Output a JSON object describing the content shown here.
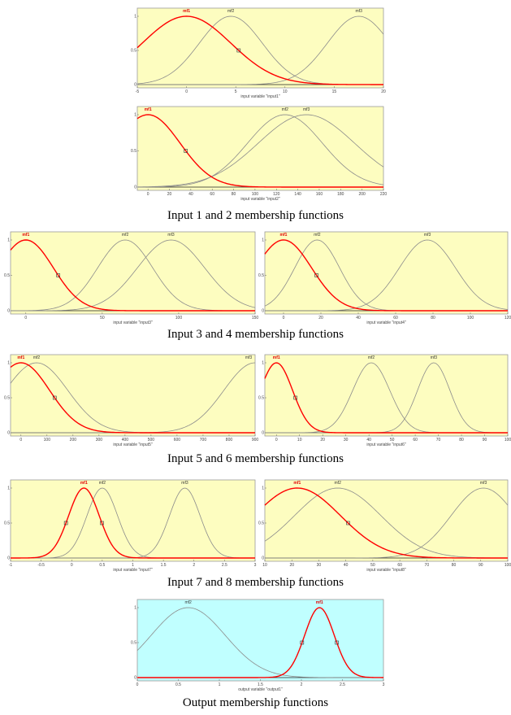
{
  "colors": {
    "yellow_bg": "#fdfdc0",
    "cyan_bg": "#c0ffff",
    "selected": "#ff0000",
    "curve": "#8c8c8c",
    "frame": "#9a9a9a"
  },
  "captions": [
    "Input 1  and 2 membership functions",
    "Input 3 and 4 membership functions",
    "Input 5 and 6 membership functions",
    "Input 7  and 8 membership functions",
    "Output  membership functions"
  ],
  "chart_data": [
    {
      "id": "input1",
      "type": "line",
      "bg": "yellow",
      "xlabel": "input variable \"input1\"",
      "xlim": [
        -5,
        20
      ],
      "ylim": [
        0,
        1
      ],
      "xticks": [
        "-5",
        "0",
        "5",
        "10",
        "15",
        "20"
      ],
      "yticks": [
        "0",
        "0.5",
        "1"
      ],
      "mfs": [
        {
          "name": "mf1",
          "c": 0,
          "s": 4.5,
          "selected": true
        },
        {
          "name": "mf2",
          "c": 4.5,
          "s": 3.2
        },
        {
          "name": "mf3",
          "c": 17.5,
          "s": 3.2
        }
      ]
    },
    {
      "id": "input2",
      "type": "line",
      "bg": "yellow",
      "xlabel": "input variable \"input2\"",
      "xlim": [
        -10,
        220
      ],
      "ylim": [
        0,
        1
      ],
      "xticks": [
        "0",
        "20",
        "40",
        "60",
        "80",
        "100",
        "120",
        "140",
        "160",
        "180",
        "200",
        "220"
      ],
      "yticks": [
        "0",
        "0.5",
        "1"
      ],
      "mfs": [
        {
          "name": "mf1",
          "c": 0,
          "s": 30,
          "selected": true
        },
        {
          "name": "mf2",
          "c": 128,
          "s": 35
        },
        {
          "name": "mf3",
          "c": 148,
          "s": 45
        }
      ]
    },
    {
      "id": "input3",
      "type": "line",
      "bg": "yellow",
      "xlabel": "input variable \"input3\"",
      "xlim": [
        -10,
        150
      ],
      "ylim": [
        0,
        1
      ],
      "xticks": [
        "0",
        "50",
        "100",
        "150"
      ],
      "yticks": [
        "0",
        "0.5",
        "1"
      ],
      "mfs": [
        {
          "name": "mf1",
          "c": 0,
          "s": 18,
          "selected": true
        },
        {
          "name": "mf2",
          "c": 65,
          "s": 18
        },
        {
          "name": "mf3",
          "c": 95,
          "s": 22
        }
      ]
    },
    {
      "id": "input4",
      "type": "line",
      "bg": "yellow",
      "xlabel": "input variable \"input4\"",
      "xlim": [
        -10,
        120
      ],
      "ylim": [
        0,
        1
      ],
      "xticks": [
        "0",
        "20",
        "40",
        "60",
        "80",
        "100",
        "120"
      ],
      "yticks": [
        "0",
        "0.5",
        "1"
      ],
      "mfs": [
        {
          "name": "mf1",
          "c": 0,
          "s": 15,
          "selected": true
        },
        {
          "name": "mf2",
          "c": 18,
          "s": 12
        },
        {
          "name": "mf3",
          "c": 77,
          "s": 15
        }
      ]
    },
    {
      "id": "input5",
      "type": "line",
      "bg": "yellow",
      "xlabel": "input variable \"input5\"",
      "xlim": [
        -40,
        900
      ],
      "ylim": [
        0,
        1
      ],
      "xticks": [
        "0",
        "100",
        "200",
        "300",
        "400",
        "500",
        "600",
        "700",
        "800",
        "900"
      ],
      "yticks": [
        "0",
        "0.5",
        "1"
      ],
      "mfs": [
        {
          "name": "mf1",
          "c": 0,
          "s": 110,
          "selected": true
        },
        {
          "name": "mf2",
          "c": 60,
          "s": 120
        },
        {
          "name": "mf3",
          "c": 900,
          "s": 120
        }
      ]
    },
    {
      "id": "input6",
      "type": "line",
      "bg": "yellow",
      "xlabel": "input variable \"input6\"",
      "xlim": [
        -5,
        100
      ],
      "ylim": [
        0,
        1
      ],
      "xticks": [
        "0",
        "10",
        "20",
        "30",
        "40",
        "50",
        "60",
        "70",
        "80",
        "90",
        "100"
      ],
      "yticks": [
        "0",
        "0.5",
        "1"
      ],
      "mfs": [
        {
          "name": "mf1",
          "c": 0,
          "s": 7,
          "selected": true
        },
        {
          "name": "mf2",
          "c": 41,
          "s": 8
        },
        {
          "name": "mf3",
          "c": 68,
          "s": 7
        }
      ]
    },
    {
      "id": "input7",
      "type": "line",
      "bg": "yellow",
      "xlabel": "input variable \"input7\"",
      "xlim": [
        -1,
        3
      ],
      "ylim": [
        0,
        1
      ],
      "xticks": [
        "-1",
        "-0.5",
        "0",
        "0.5",
        "1",
        "1.5",
        "2",
        "2.5",
        "3"
      ],
      "yticks": [
        "0",
        "0.5",
        "1"
      ],
      "mfs": [
        {
          "name": "mf1",
          "c": 0.2,
          "s": 0.25,
          "selected": true
        },
        {
          "name": "mf2",
          "c": 0.5,
          "s": 0.25
        },
        {
          "name": "mf3",
          "c": 1.85,
          "s": 0.25
        }
      ]
    },
    {
      "id": "input8",
      "type": "line",
      "bg": "yellow",
      "xlabel": "input variable \"input8\"",
      "xlim": [
        10,
        100
      ],
      "ylim": [
        0,
        1
      ],
      "xticks": [
        "10",
        "20",
        "30",
        "40",
        "50",
        "60",
        "70",
        "80",
        "90",
        "100"
      ],
      "yticks": [
        "0",
        "0.5",
        "1"
      ],
      "mfs": [
        {
          "name": "mf1",
          "c": 22,
          "s": 16,
          "selected": true
        },
        {
          "name": "mf2",
          "c": 37,
          "s": 16
        },
        {
          "name": "mf3",
          "c": 91,
          "s": 12
        }
      ]
    },
    {
      "id": "output1",
      "type": "line",
      "bg": "cyan",
      "xlabel": "output variable \"output1\"",
      "xlim": [
        0,
        3
      ],
      "ylim": [
        0,
        1
      ],
      "xticks": [
        "0",
        "0.5",
        "1",
        "1.5",
        "2",
        "2.5",
        "3"
      ],
      "yticks": [
        "0",
        "0.5",
        "1"
      ],
      "mfs": [
        {
          "name": "mf2",
          "c": 0.62,
          "s": 0.45
        },
        {
          "name": "mf1",
          "c": 2.22,
          "s": 0.18,
          "selected": true
        }
      ]
    }
  ]
}
